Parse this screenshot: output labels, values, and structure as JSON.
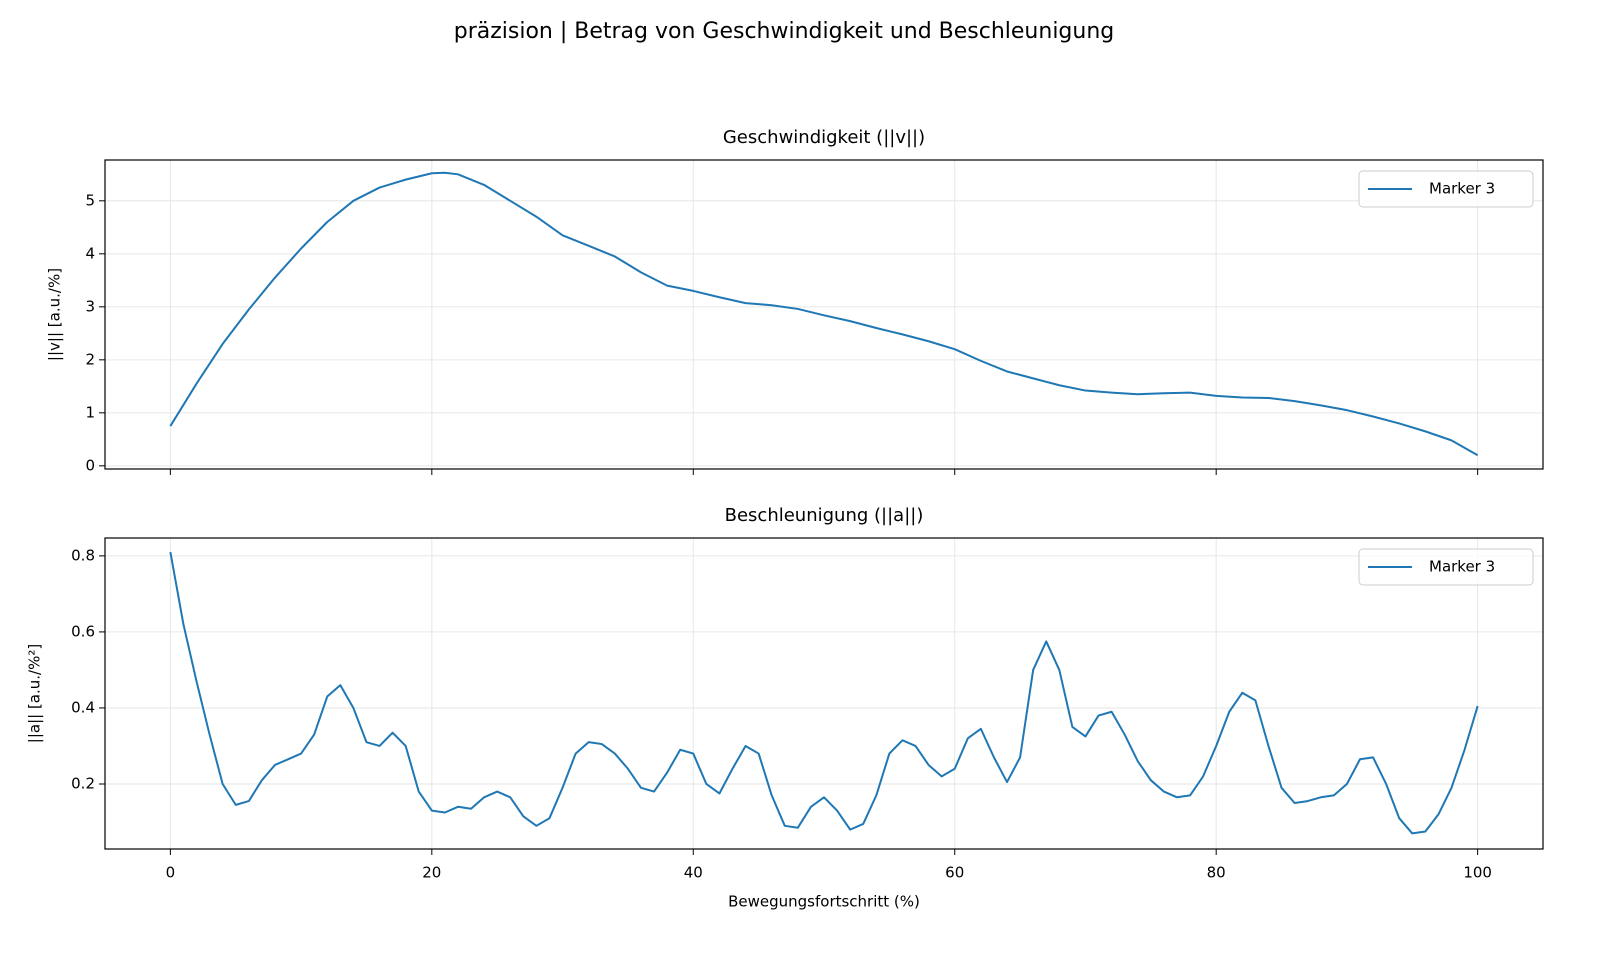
{
  "title": "präzision | Betrag von Geschwindigkeit und Beschleunigung",
  "chart_data": [
    {
      "type": "line",
      "title": "Geschwindigkeit (||v||)",
      "ylabel": "||v|| [a.u./%]",
      "x": [
        0,
        2,
        4,
        6,
        8,
        10,
        12,
        14,
        16,
        18,
        20,
        21,
        22,
        24,
        26,
        28,
        30,
        32,
        34,
        36,
        38,
        40,
        42,
        44,
        46,
        48,
        50,
        52,
        54,
        56,
        58,
        60,
        62,
        64,
        66,
        68,
        70,
        72,
        74,
        76,
        78,
        80,
        82,
        84,
        86,
        88,
        90,
        92,
        94,
        96,
        98,
        100
      ],
      "series": [
        {
          "name": "Marker 3",
          "color": "#1f77b4",
          "values": [
            0.75,
            1.55,
            2.3,
            2.95,
            3.55,
            4.1,
            4.6,
            5.0,
            5.25,
            5.4,
            5.52,
            5.53,
            5.5,
            5.3,
            5.0,
            4.7,
            4.35,
            4.15,
            3.95,
            3.65,
            3.4,
            3.3,
            3.18,
            3.07,
            3.03,
            2.96,
            2.84,
            2.73,
            2.6,
            2.48,
            2.35,
            2.2,
            1.98,
            1.78,
            1.65,
            1.52,
            1.42,
            1.38,
            1.35,
            1.37,
            1.38,
            1.32,
            1.29,
            1.28,
            1.22,
            1.14,
            1.05,
            0.93,
            0.8,
            0.65,
            0.48,
            0.2
          ]
        }
      ],
      "xlim": [
        -5,
        105
      ],
      "ylim": [
        -0.06,
        5.77
      ],
      "xticks": [
        0,
        20,
        40,
        60,
        80,
        100
      ],
      "yticks": [
        0,
        1,
        2,
        3,
        4,
        5
      ],
      "grid": true,
      "legend": "upper right"
    },
    {
      "type": "line",
      "title": "Beschleunigung (||a||)",
      "ylabel": "||a|| [a.u./%²]",
      "xlabel": "Bewegungsfortschritt (%)",
      "x": [
        0,
        1,
        2,
        3,
        4,
        5,
        6,
        7,
        8,
        9,
        10,
        11,
        12,
        13,
        14,
        15,
        16,
        17,
        18,
        19,
        20,
        21,
        22,
        23,
        24,
        25,
        26,
        27,
        28,
        29,
        30,
        31,
        32,
        33,
        34,
        35,
        36,
        37,
        38,
        39,
        40,
        41,
        42,
        43,
        44,
        45,
        46,
        47,
        48,
        49,
        50,
        51,
        52,
        53,
        54,
        55,
        56,
        57,
        58,
        59,
        60,
        61,
        62,
        63,
        64,
        65,
        66,
        67,
        68,
        69,
        70,
        71,
        72,
        73,
        74,
        75,
        76,
        77,
        78,
        79,
        80,
        81,
        82,
        83,
        84,
        85,
        86,
        87,
        88,
        89,
        90,
        91,
        92,
        93,
        94,
        95,
        96,
        97,
        98,
        99,
        100
      ],
      "series": [
        {
          "name": "Marker 3",
          "color": "#1f77b4",
          "values": [
            0.81,
            0.62,
            0.47,
            0.33,
            0.2,
            0.145,
            0.155,
            0.21,
            0.25,
            0.265,
            0.28,
            0.33,
            0.43,
            0.46,
            0.4,
            0.31,
            0.3,
            0.335,
            0.3,
            0.18,
            0.13,
            0.125,
            0.14,
            0.135,
            0.165,
            0.18,
            0.165,
            0.115,
            0.09,
            0.11,
            0.19,
            0.28,
            0.31,
            0.305,
            0.28,
            0.24,
            0.19,
            0.18,
            0.23,
            0.29,
            0.28,
            0.2,
            0.175,
            0.24,
            0.3,
            0.28,
            0.17,
            0.09,
            0.085,
            0.14,
            0.165,
            0.13,
            0.08,
            0.095,
            0.17,
            0.28,
            0.315,
            0.3,
            0.25,
            0.22,
            0.24,
            0.32,
            0.345,
            0.27,
            0.205,
            0.27,
            0.5,
            0.575,
            0.5,
            0.35,
            0.325,
            0.38,
            0.39,
            0.33,
            0.26,
            0.21,
            0.18,
            0.165,
            0.17,
            0.22,
            0.3,
            0.39,
            0.44,
            0.42,
            0.3,
            0.19,
            0.15,
            0.155,
            0.165,
            0.17,
            0.2,
            0.265,
            0.27,
            0.2,
            0.11,
            0.07,
            0.075,
            0.12,
            0.19,
            0.29,
            0.405
          ]
        }
      ],
      "xlim": [
        -5,
        105
      ],
      "ylim": [
        0.029,
        0.847
      ],
      "xticks": [
        0,
        20,
        40,
        60,
        80,
        100
      ],
      "yticks": [
        0.2,
        0.4,
        0.6,
        0.8
      ],
      "grid": true,
      "legend": "upper right"
    }
  ]
}
